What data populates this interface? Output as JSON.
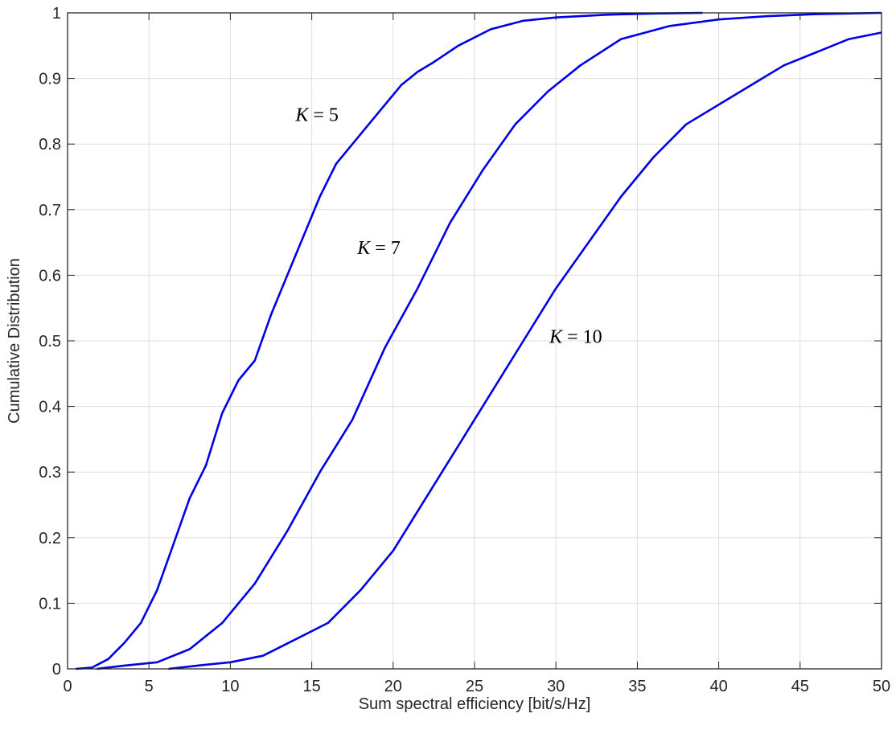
{
  "chart_data": {
    "type": "line",
    "title": "",
    "xlabel": "Sum spectral efficiency [bit/s/Hz]",
    "ylabel": "Cumulative Distribution",
    "xlim": [
      0,
      50
    ],
    "ylim": [
      0,
      1
    ],
    "x_ticks": [
      "0",
      "5",
      "10",
      "15",
      "20",
      "25",
      "30",
      "35",
      "40",
      "45",
      "50"
    ],
    "y_ticks": [
      "0",
      "0.1",
      "0.2",
      "0.3",
      "0.4",
      "0.5",
      "0.6",
      "0.7",
      "0.8",
      "0.9",
      "1"
    ],
    "grid": true,
    "legend": "none",
    "line_color": "#0000e6",
    "series": [
      {
        "x": [
          0.5,
          1.5,
          2.5,
          3.5,
          4.5,
          5.5,
          6.5,
          7.5,
          8.5,
          9.5,
          10.5,
          11.5,
          12.5,
          13.5,
          14.5,
          15.5,
          16.5,
          17.5,
          18.5,
          19.5,
          20.5,
          21.5,
          22.5,
          24,
          26,
          28,
          30,
          33,
          36,
          39
        ],
        "y": [
          0.0,
          0.002,
          0.015,
          0.04,
          0.07,
          0.12,
          0.19,
          0.26,
          0.31,
          0.39,
          0.44,
          0.47,
          0.54,
          0.6,
          0.66,
          0.72,
          0.77,
          0.8,
          0.83,
          0.86,
          0.89,
          0.91,
          0.925,
          0.95,
          0.975,
          0.988,
          0.993,
          0.997,
          0.999,
          1.0
        ]
      },
      {
        "x": [
          1.8,
          3.5,
          5.5,
          7.5,
          9.5,
          11.5,
          13.5,
          15.5,
          17.5,
          19.5,
          21.5,
          23.5,
          25.5,
          27.5,
          29.5,
          31.5,
          34,
          37,
          40,
          43,
          46,
          50
        ],
        "y": [
          0.0,
          0.005,
          0.01,
          0.03,
          0.07,
          0.13,
          0.21,
          0.3,
          0.38,
          0.49,
          0.58,
          0.68,
          0.76,
          0.83,
          0.88,
          0.92,
          0.96,
          0.98,
          0.99,
          0.995,
          0.998,
          1.0
        ]
      },
      {
        "x": [
          6.2,
          8,
          10,
          12,
          14,
          16,
          18,
          20,
          22,
          24,
          26,
          28,
          30,
          32,
          34,
          36,
          38,
          40,
          42,
          44,
          46,
          48,
          50
        ],
        "y": [
          0.0,
          0.005,
          0.01,
          0.02,
          0.045,
          0.07,
          0.12,
          0.18,
          0.26,
          0.34,
          0.42,
          0.5,
          0.58,
          0.65,
          0.72,
          0.78,
          0.83,
          0.86,
          0.89,
          0.92,
          0.94,
          0.96,
          0.97
        ]
      }
    ],
    "annotations": [
      {
        "var": "K",
        "rest": " = 5",
        "x": 14,
        "y": 0.845
      },
      {
        "var": "K",
        "rest": " = 7",
        "x": 17.8,
        "y": 0.642
      },
      {
        "var": "K",
        "rest": " = 10",
        "x": 29.6,
        "y": 0.507
      }
    ]
  }
}
